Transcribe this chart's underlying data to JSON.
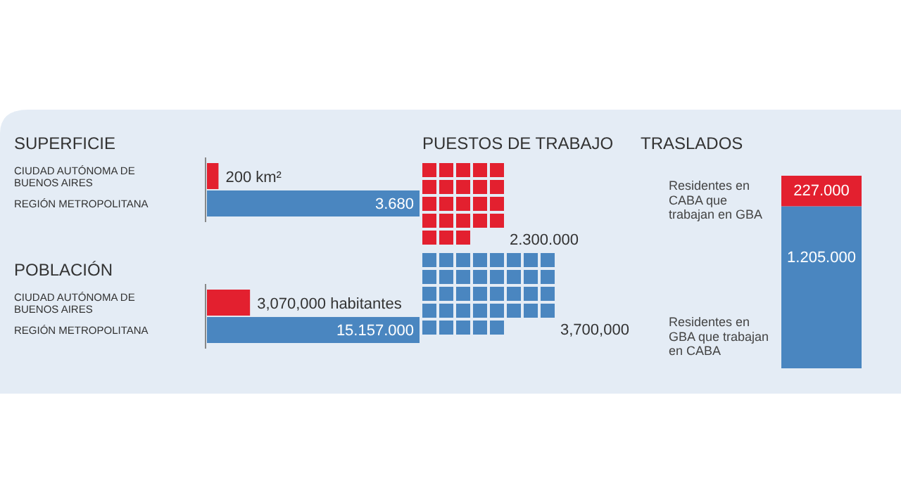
{
  "chart_data": [
    {
      "type": "bar",
      "orientation": "horizontal",
      "title": "SUPERFICIE",
      "categories": [
        "CIUDAD AUTÓNOMA DE BUENOS AIRES",
        "REGIÓN METROPOLITANA"
      ],
      "values": [
        200,
        3680
      ],
      "colors": [
        "#e3202f",
        "#4a86c0"
      ],
      "value_labels": [
        "200 km²",
        null
      ],
      "annotations": [
        {
          "text": "3.680",
          "x": 3680,
          "y": "REGIÓN METROPOLITANA"
        }
      ]
    },
    {
      "type": "bar",
      "orientation": "horizontal",
      "title": "POBLACIÓN",
      "categories": [
        "CIUDAD AUTÓNOMA DE BUENOS AIRES",
        "REGIÓN METROPOLITANA"
      ],
      "values": [
        3070000,
        15157000
      ],
      "colors": [
        "#e3202f",
        "#4a86c0"
      ],
      "value_labels": [
        "3,070,000 habitantes",
        "15.157.000"
      ]
    },
    {
      "type": "other",
      "title": "PUESTOS DE TRABAJO",
      "categories": [
        null,
        null
      ],
      "values": [
        2300000,
        3700000
      ],
      "colors": [
        "#e3202f",
        "#4a86c0"
      ],
      "value_labels": [
        "2.300.000",
        "3,700,000"
      ]
    },
    {
      "type": "bar",
      "stacked": true,
      "title": "TRASLADOS",
      "categories": [
        null
      ],
      "series": [
        {
          "name": "Residentes en GBA que trabajan en CABA",
          "color": "#4a86c0",
          "values": [
            1205000
          ],
          "value_labels": [
            "1.205.000"
          ]
        },
        {
          "name": "Residentes en CABA que trabajan en GBA",
          "color": "#e3202f",
          "values": [
            227000
          ],
          "value_labels": [
            null
          ]
        }
      ],
      "annotations": [
        {
          "text": "227.000",
          "y": 1432000
        }
      ]
    }
  ]
}
